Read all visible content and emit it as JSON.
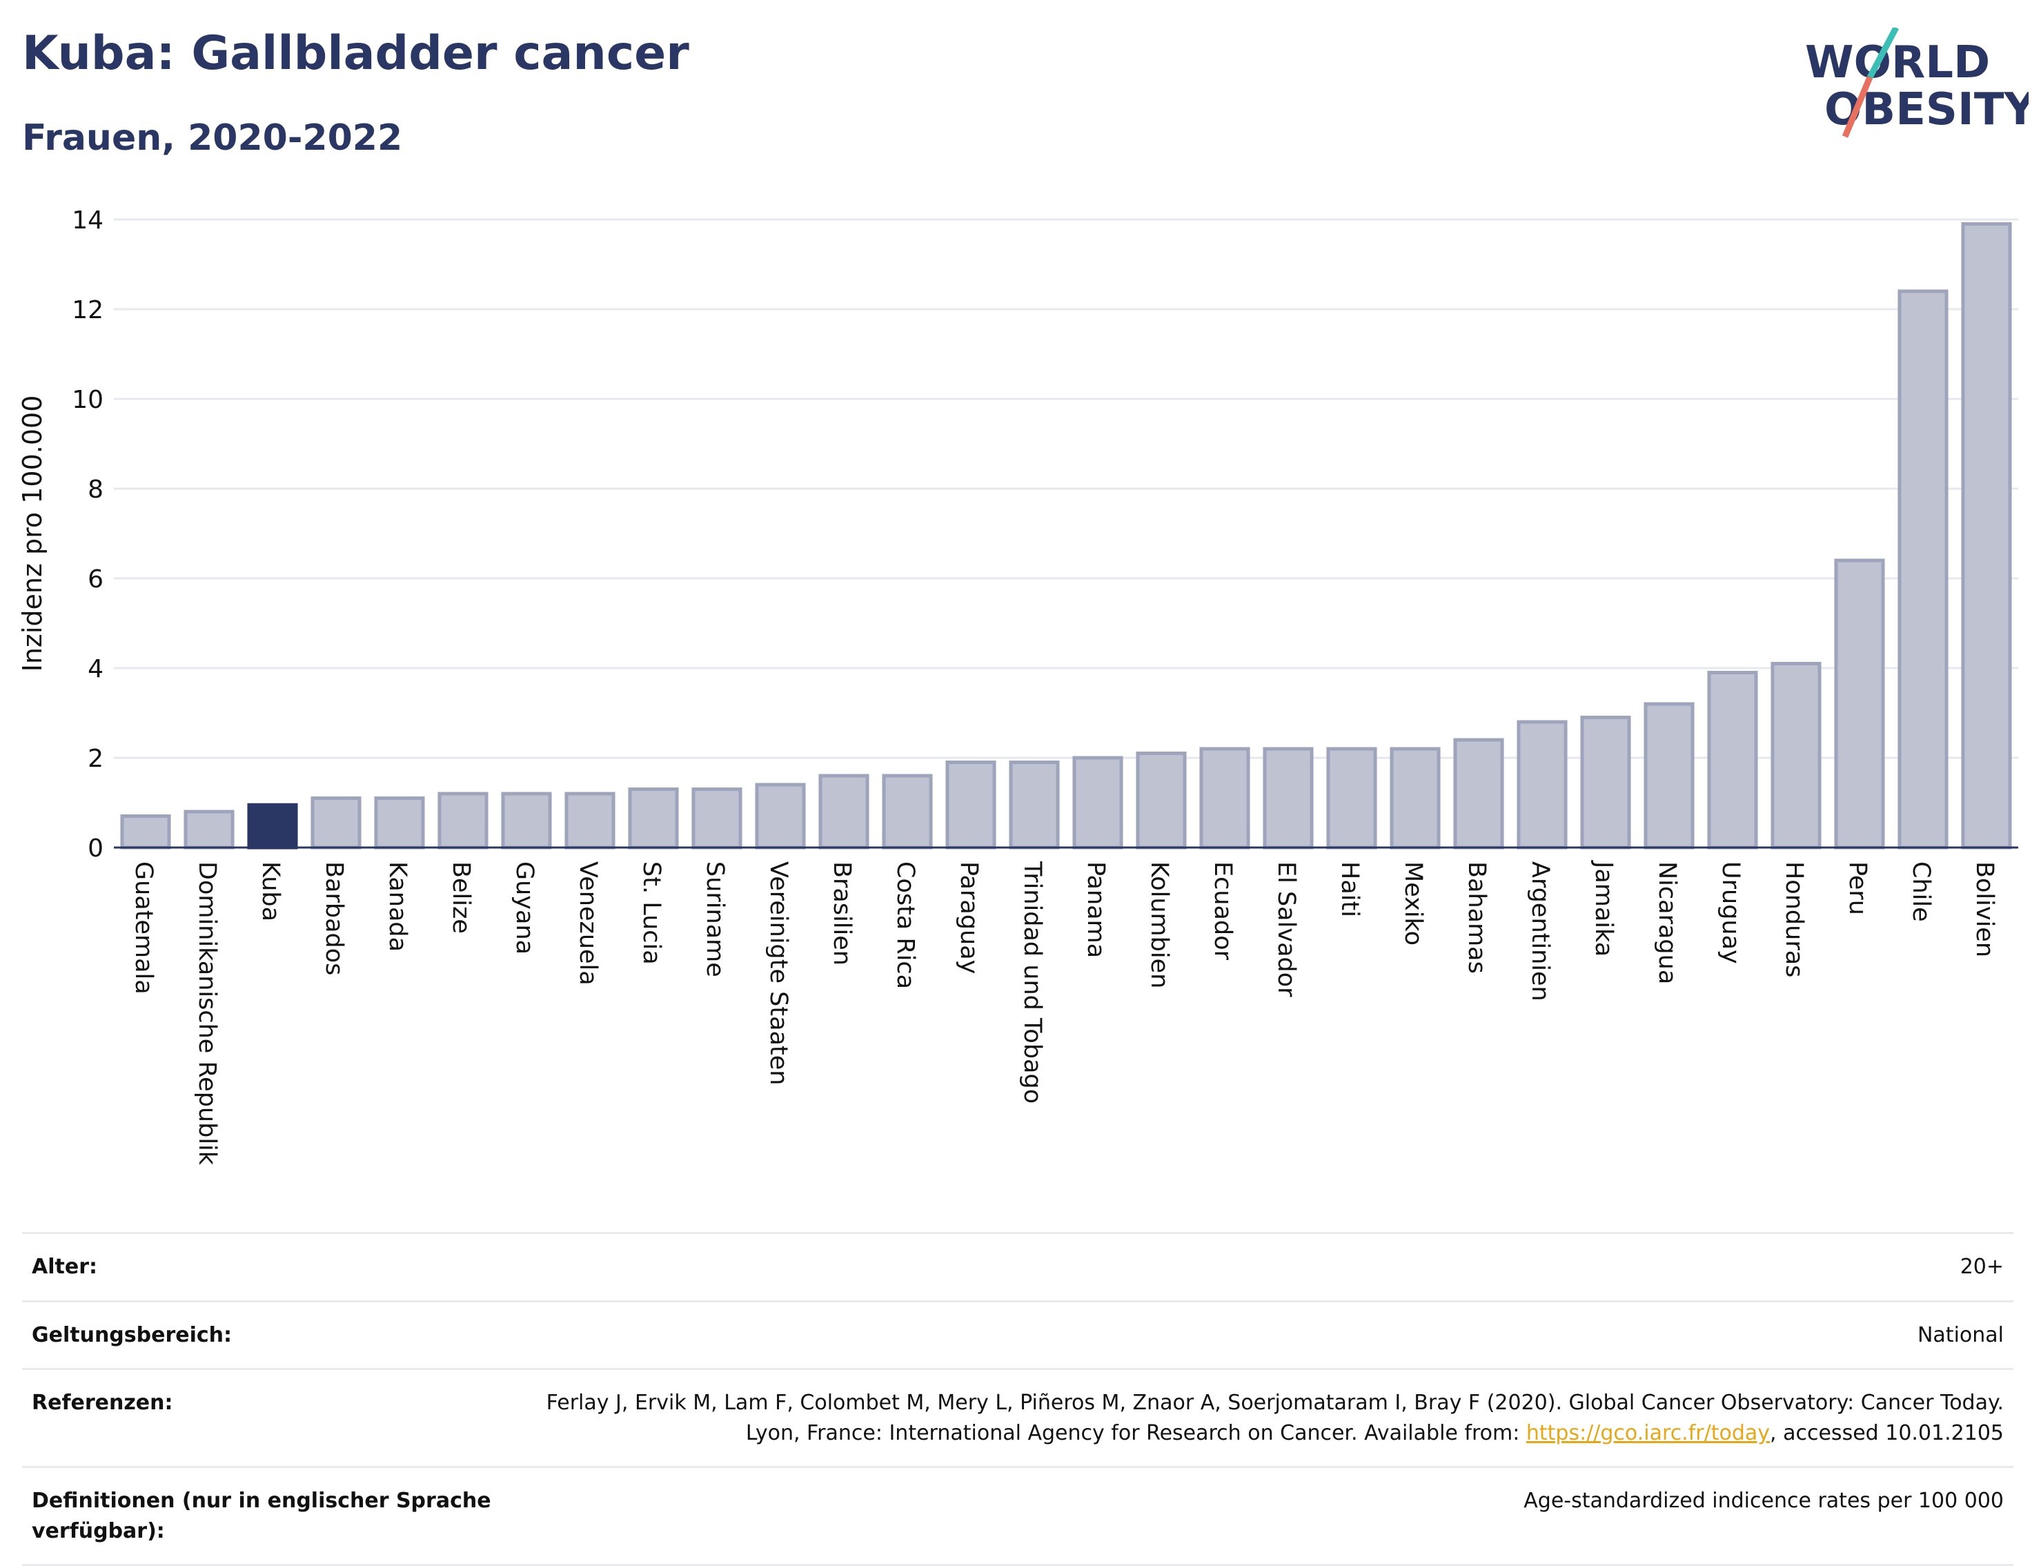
{
  "header": {
    "title": "Kuba: Gallbladder cancer",
    "subtitle": "Frauen, 2020-2022",
    "logo_line1": "WORLD",
    "logo_line2": "OBESITY"
  },
  "colors": {
    "bar": "#bfc3d1",
    "bar_stroke": "#9ea4bb",
    "highlight": "#2a3764",
    "grid": "#e6e8ef",
    "axis_text": "#111111",
    "logo_teal": "#3bbfb5",
    "logo_coral": "#e8705f"
  },
  "chart_data": {
    "type": "bar",
    "title": "Kuba: Gallbladder cancer",
    "subtitle": "Frauen, 2020-2022",
    "ylabel": "Inzidenz pro 100.000",
    "xlabel": "",
    "ylim": [
      0,
      14
    ],
    "yticks": [
      0,
      2,
      4,
      6,
      8,
      10,
      12,
      14
    ],
    "grid": true,
    "highlight": "Kuba",
    "categories": [
      "Guatemala",
      "Dominikanische Republik",
      "Kuba",
      "Barbados",
      "Kanada",
      "Belize",
      "Guyana",
      "Venezuela",
      "St. Lucia",
      "Suriname",
      "Vereinigte Staaten",
      "Brasilien",
      "Costa Rica",
      "Paraguay",
      "Trinidad und Tobago",
      "Panama",
      "Kolumbien",
      "Ecuador",
      "El Salvador",
      "Haiti",
      "Mexiko",
      "Bahamas",
      "Argentinien",
      "Jamaika",
      "Nicaragua",
      "Uruguay",
      "Honduras",
      "Peru",
      "Chile",
      "Bolivien"
    ],
    "values": [
      0.7,
      0.8,
      0.95,
      1.1,
      1.1,
      1.2,
      1.2,
      1.2,
      1.3,
      1.3,
      1.4,
      1.6,
      1.6,
      1.9,
      1.9,
      2.0,
      2.1,
      2.2,
      2.2,
      2.2,
      2.2,
      2.4,
      2.8,
      2.9,
      3.2,
      3.9,
      4.1,
      6.4,
      12.4,
      13.9
    ]
  },
  "meta": {
    "age_label": "Alter:",
    "age_value": "20+",
    "scope_label": "Geltungsbereich:",
    "scope_value": "National",
    "refs_label": "Referenzen:",
    "refs_text_1": "Ferlay J, Ervik M, Lam F, Colombet M, Mery L, Piñeros M, Znaor A, Soerjomataram I, Bray F (2020). Global Cancer Observatory: Cancer Today. Lyon, France: International Agency for Research on Cancer. Available from: ",
    "refs_link": "https://gco.iarc.fr/today",
    "refs_text_2": ", accessed 10.01.2105",
    "defs_label": "Definitionen (nur in englischer Sprache verfügbar):",
    "defs_value": "Age-standardized indicence rates per 100 000"
  }
}
